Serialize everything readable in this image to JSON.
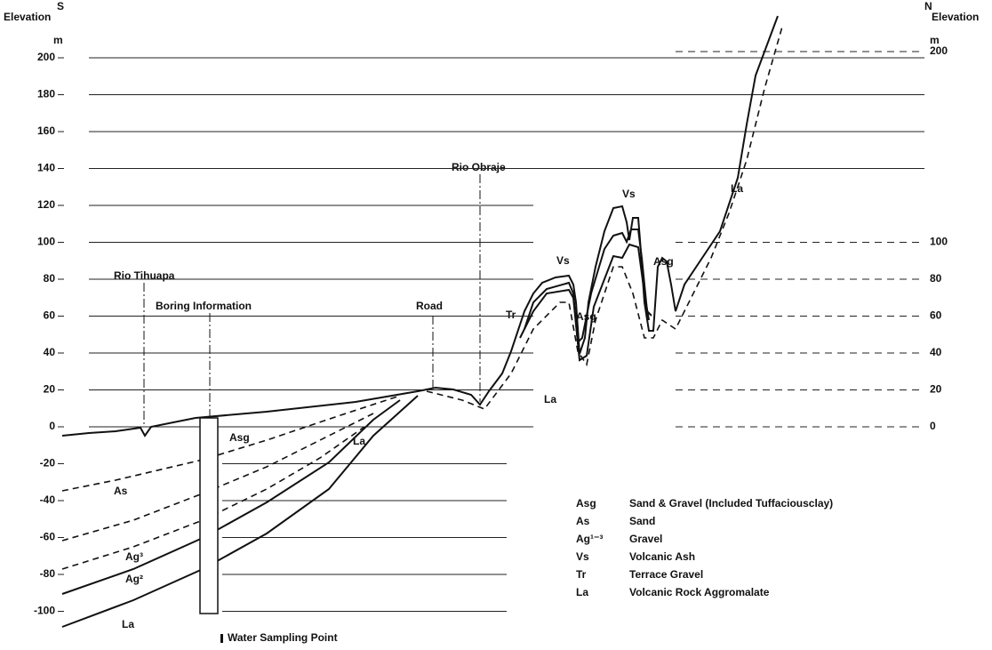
{
  "left_axis": {
    "direction": "S",
    "title": "Elevation",
    "unit": "m",
    "ticks": [
      200,
      180,
      160,
      140,
      120,
      100,
      80,
      60,
      40,
      20,
      0,
      -20,
      -40,
      -60,
      -80,
      -100
    ]
  },
  "right_axis": {
    "direction": "N",
    "title": "Elevation",
    "unit": "m",
    "ticks": [
      200,
      100,
      80,
      60,
      40,
      20,
      0
    ]
  },
  "landmarks": [
    {
      "label": "Rio Tihuapa"
    },
    {
      "label": "Boring Information"
    },
    {
      "label": "Road"
    },
    {
      "label": "Rio Obraje"
    }
  ],
  "layer_labels": [
    "Vs",
    "Vs",
    "Asg",
    "Asg",
    "Tr",
    "La",
    "La",
    "La",
    "La",
    "Asg",
    "As",
    "Ag³",
    "Ag²"
  ],
  "legend": [
    {
      "code": "Asg",
      "description": "Sand & Gravel (Included Tuffaciousclay)"
    },
    {
      "code": "As",
      "description": "Sand"
    },
    {
      "code": "Ag¹⁻³",
      "description": "Gravel"
    },
    {
      "code": "Vs",
      "description": "Volcanic Ash"
    },
    {
      "code": "Tr",
      "description": "Terrace Gravel"
    },
    {
      "code": "La",
      "description": "Volcanic Rock Aggromalate"
    }
  ],
  "note": "Water Sampling Point"
}
